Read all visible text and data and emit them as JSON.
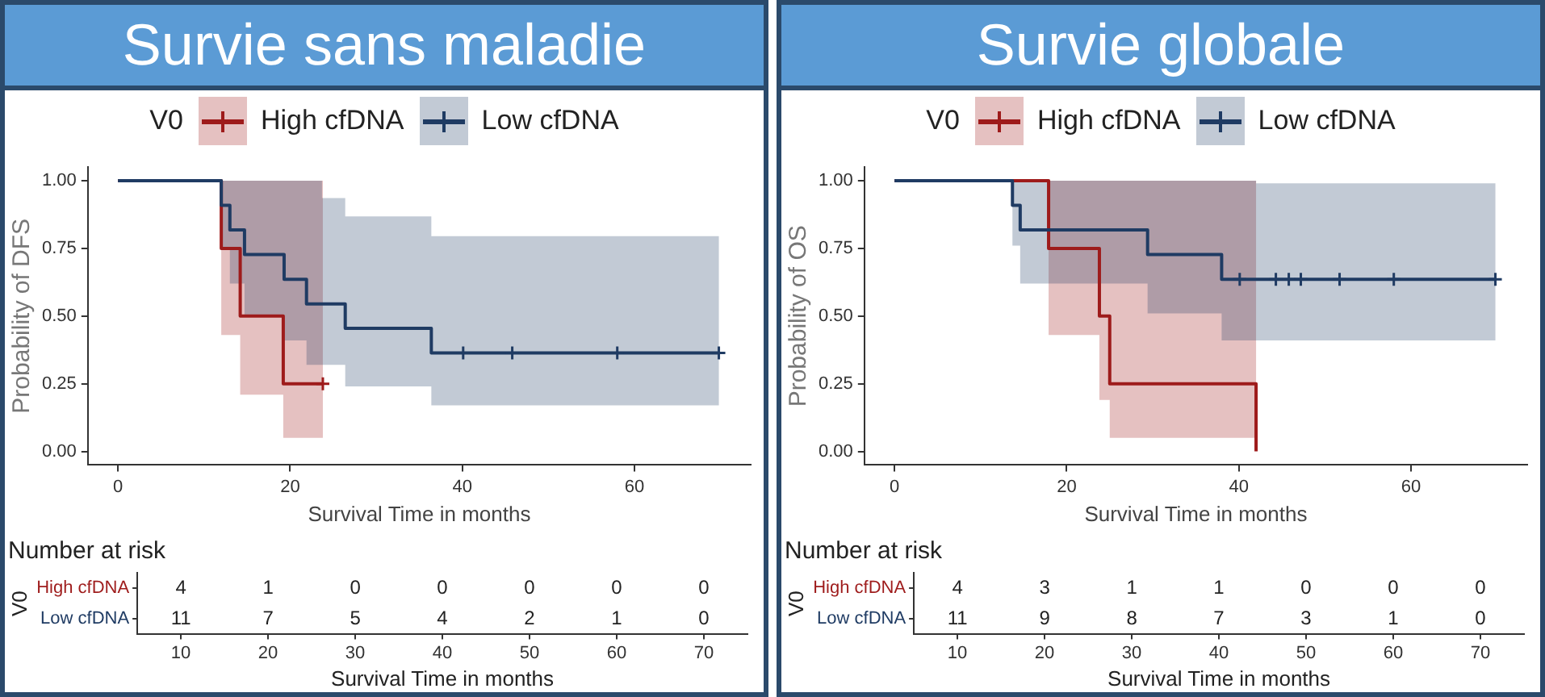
{
  "chart_data": [
    {
      "type": "step",
      "title": "Survie sans maladie",
      "xlabel": "Survival Time in months",
      "ylabel": "Probability of DFS",
      "legend_title": "V0",
      "legend": "top",
      "grid": false,
      "xlim": [
        -3.5,
        73.5
      ],
      "xticks": [
        0,
        20,
        40,
        60
      ],
      "ylim": [
        -0.05,
        1.05
      ],
      "yticks": [
        {
          "value": 0,
          "label": "0.00"
        },
        {
          "value": 0.25,
          "label": "0.25"
        },
        {
          "value": 0.5,
          "label": "0.50"
        },
        {
          "value": 0.75,
          "label": "0.75"
        },
        {
          "value": 1,
          "label": "1.00"
        }
      ],
      "series": [
        {
          "name": "High cfDNA",
          "color": "#9e1b1b",
          "x": [
            0,
            12,
            14.2,
            19.2,
            23.8
          ],
          "values": [
            1,
            0.75,
            0.5,
            0.25,
            0.25
          ],
          "lower": [
            1,
            0.43,
            0.21,
            0.05,
            0.05
          ],
          "upper": [
            1,
            1,
            1,
            1,
            1
          ]
        },
        {
          "name": "Low cfDNA",
          "color": "#1f3b63",
          "x": [
            0,
            12,
            13,
            14.7,
            19.3,
            21.9,
            23.7,
            26.4,
            36.4,
            69.8
          ],
          "values": [
            1,
            0.909,
            0.818,
            0.727,
            0.636,
            0.545,
            0.545,
            0.455,
            0.364,
            0.364
          ],
          "lower": [
            1,
            0.75,
            0.62,
            0.5,
            0.41,
            0.32,
            0.32,
            0.24,
            0.17,
            0.17
          ],
          "upper": [
            1,
            1,
            1,
            1,
            1,
            1,
            0.936,
            0.868,
            0.795,
            0.795
          ]
        },
        {
          "type": "scatter",
          "color": "#9e1b1b",
          "marker": "cross",
          "x": [
            23.8
          ],
          "values": [
            0.25
          ]
        },
        {
          "type": "scatter",
          "color": "#1f3b63",
          "marker": "cross",
          "x": [
            40.1,
            45.8,
            58,
            69.8
          ],
          "values": [
            0.364,
            0.364,
            0.364,
            0.364
          ]
        }
      ]
    },
    {
      "type": "heatmap",
      "title": "Number at risk",
      "xlabel": "Survival Time in months",
      "ylabel": "V0",
      "categories": [
        "10",
        "20",
        "30",
        "40",
        "50",
        "60",
        "70"
      ],
      "y_categories": [
        "High cfDNA",
        "Low cfDNA"
      ],
      "cells": [
        [
          4,
          1,
          0,
          0,
          0,
          0,
          0
        ],
        [
          11,
          7,
          5,
          4,
          2,
          1,
          0
        ]
      ],
      "data_labels": true
    },
    {
      "type": "step",
      "title": "Survie globale",
      "xlabel": "Survival Time in months",
      "ylabel": "Probability of OS",
      "legend_title": "V0",
      "legend": "top",
      "grid": false,
      "xlim": [
        -3.5,
        73.5
      ],
      "xticks": [
        0,
        20,
        40,
        60
      ],
      "ylim": [
        -0.05,
        1.05
      ],
      "yticks": [
        {
          "value": 0,
          "label": "0.00"
        },
        {
          "value": 0.25,
          "label": "0.25"
        },
        {
          "value": 0.5,
          "label": "0.50"
        },
        {
          "value": 0.75,
          "label": "0.75"
        },
        {
          "value": 1,
          "label": "1.00"
        }
      ],
      "series": [
        {
          "name": "High cfDNA",
          "color": "#9e1b1b",
          "x": [
            0,
            17.9,
            23.8,
            25,
            42
          ],
          "values": [
            1,
            0.75,
            0.5,
            0.25,
            0
          ],
          "lower": [
            1,
            0.43,
            0.19,
            0.05,
            0.05
          ],
          "upper": [
            1,
            1,
            1,
            1,
            1
          ]
        },
        {
          "name": "Low cfDNA",
          "color": "#1f3b63",
          "x": [
            0,
            13.7,
            14.6,
            29.4,
            38,
            42,
            69.8
          ],
          "values": [
            1,
            0.909,
            0.818,
            0.727,
            0.636,
            0.636,
            0.636
          ],
          "lower": [
            1,
            0.76,
            0.62,
            0.51,
            0.41,
            0.41,
            0.41
          ],
          "upper": [
            1,
            1,
            1,
            1,
            1,
            0.99,
            0.99
          ]
        },
        {
          "type": "scatter",
          "color": "#1f3b63",
          "marker": "cross",
          "x": [
            40.1,
            44.3,
            45.8,
            47.2,
            51.7,
            58,
            69.8
          ],
          "values": [
            0.636,
            0.636,
            0.636,
            0.636,
            0.636,
            0.636,
            0.636
          ]
        }
      ]
    },
    {
      "type": "heatmap",
      "title": "Number at risk",
      "xlabel": "Survival Time in months",
      "ylabel": "V0",
      "categories": [
        "10",
        "20",
        "30",
        "40",
        "50",
        "60",
        "70"
      ],
      "y_categories": [
        "High cfDNA",
        "Low cfDNA"
      ],
      "cells": [
        [
          4,
          3,
          1,
          1,
          0,
          0,
          0
        ],
        [
          11,
          9,
          8,
          7,
          3,
          1,
          0
        ]
      ],
      "data_labels": true
    }
  ]
}
